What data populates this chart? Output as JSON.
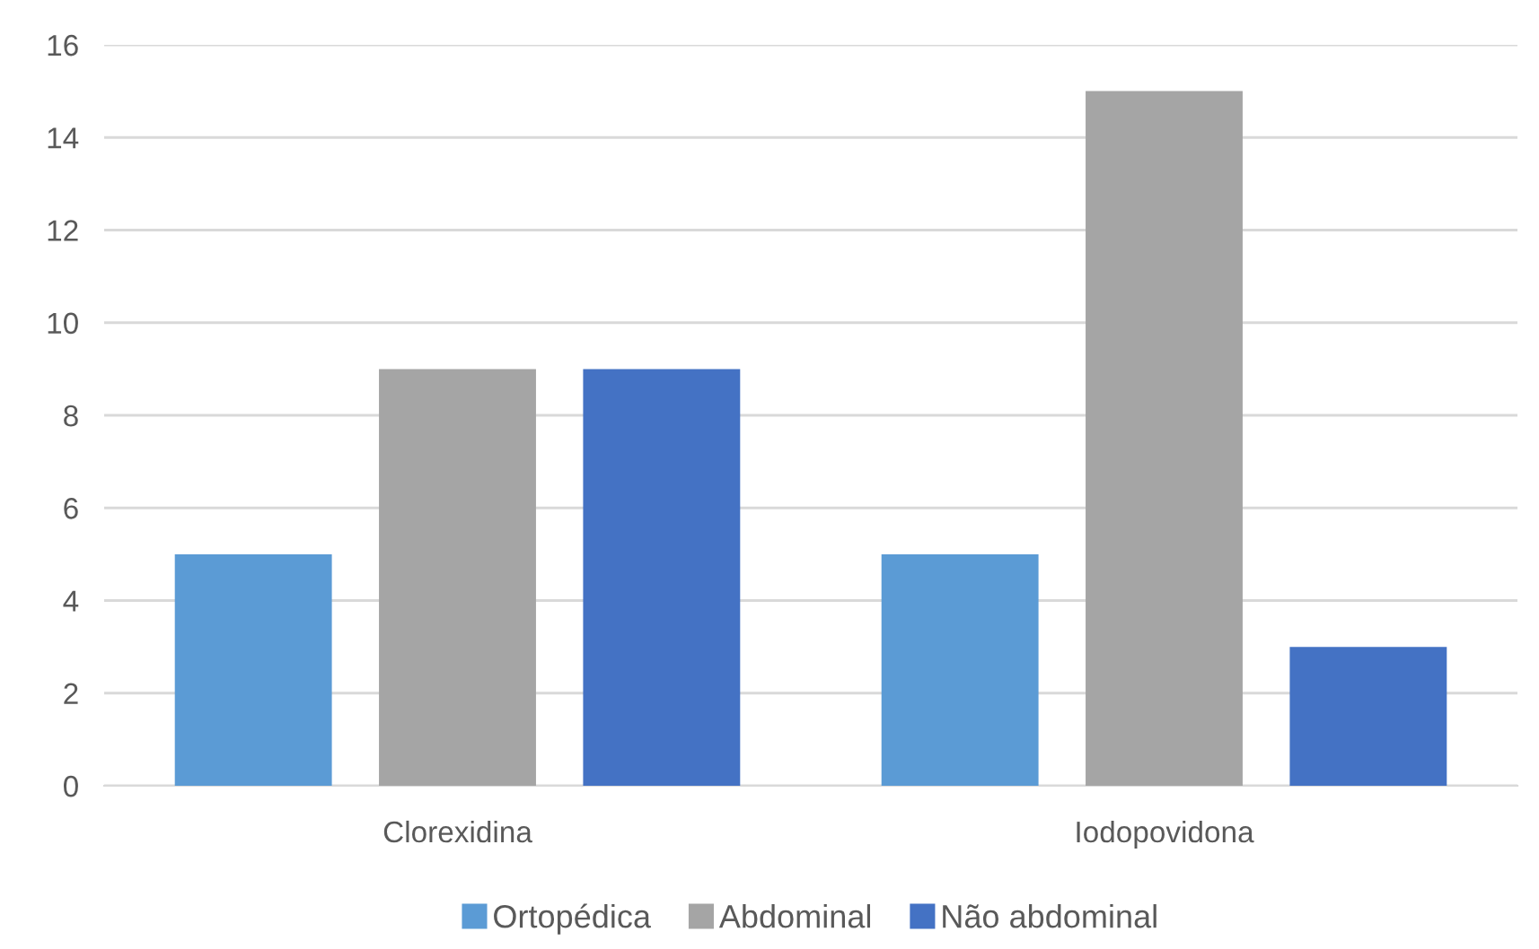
{
  "chart_data": {
    "type": "bar",
    "categories": [
      "Clorexidina",
      "Iodopovidona"
    ],
    "series": [
      {
        "name": "Ortopédica",
        "color": "#5b9bd5",
        "values": [
          5,
          5
        ]
      },
      {
        "name": "Abdominal",
        "color": "#a5a5a5",
        "values": [
          9,
          15
        ]
      },
      {
        "name": "Não abdominal",
        "color": "#4472c4",
        "values": [
          9,
          3
        ]
      }
    ],
    "ylim": [
      0,
      16
    ],
    "yticks": [
      0,
      2,
      4,
      6,
      8,
      10,
      12,
      14,
      16
    ],
    "grid": "y",
    "legend": "bottom"
  }
}
